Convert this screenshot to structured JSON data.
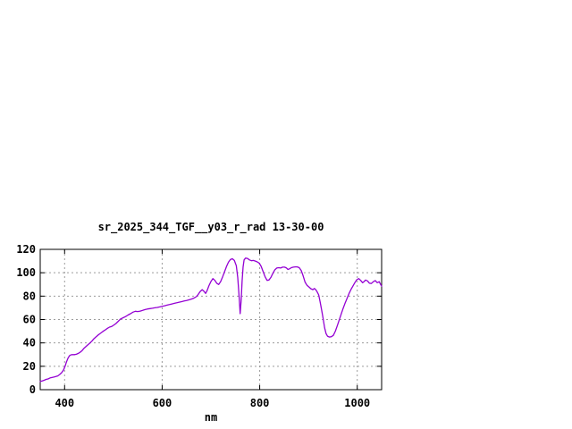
{
  "window": {
    "background": "#ffffff"
  },
  "chart_data": {
    "type": "line",
    "title": "sr_2025_344_TGF__y03_r_rad 13-30-00",
    "xlabel": "nm",
    "ylabel": "",
    "xlim": [
      350,
      1050
    ],
    "ylim": [
      0,
      120
    ],
    "x_ticks": [
      400,
      600,
      800,
      1000
    ],
    "y_ticks": [
      0,
      20,
      40,
      60,
      80,
      100,
      120
    ],
    "grid": true,
    "legend_position": "none",
    "border_color": "#000000",
    "grid_color": "#9c9c9c",
    "text_color": "#000000",
    "series": [
      {
        "color": "#9400d3",
        "points": [
          [
            350,
            7
          ],
          [
            354,
            7.5
          ],
          [
            358,
            8
          ],
          [
            362,
            8.8
          ],
          [
            366,
            9.2
          ],
          [
            370,
            10
          ],
          [
            374,
            10.4
          ],
          [
            378,
            10.8
          ],
          [
            382,
            11.2
          ],
          [
            386,
            11.8
          ],
          [
            390,
            13
          ],
          [
            394,
            14.5
          ],
          [
            398,
            17
          ],
          [
            401,
            20
          ],
          [
            404,
            24
          ],
          [
            407,
            27
          ],
          [
            410,
            29
          ],
          [
            413,
            29.8
          ],
          [
            416,
            30
          ],
          [
            420,
            30
          ],
          [
            424,
            30.3
          ],
          [
            428,
            31
          ],
          [
            432,
            32
          ],
          [
            436,
            33.5
          ],
          [
            440,
            35.5
          ],
          [
            444,
            37
          ],
          [
            448,
            38.5
          ],
          [
            452,
            40
          ],
          [
            456,
            41.5
          ],
          [
            460,
            43.5
          ],
          [
            464,
            45
          ],
          [
            468,
            46.5
          ],
          [
            472,
            47.8
          ],
          [
            476,
            49
          ],
          [
            480,
            50.2
          ],
          [
            484,
            51.3
          ],
          [
            488,
            52.5
          ],
          [
            492,
            53.5
          ],
          [
            496,
            54
          ],
          [
            500,
            55
          ],
          [
            505,
            56.5
          ],
          [
            510,
            58.5
          ],
          [
            515,
            60.5
          ],
          [
            520,
            61.5
          ],
          [
            525,
            62.5
          ],
          [
            530,
            63.8
          ],
          [
            535,
            65
          ],
          [
            540,
            66.3
          ],
          [
            545,
            67
          ],
          [
            550,
            66.8
          ],
          [
            555,
            67.2
          ],
          [
            560,
            67.8
          ],
          [
            565,
            68.5
          ],
          [
            570,
            69
          ],
          [
            575,
            69.3
          ],
          [
            580,
            69.6
          ],
          [
            585,
            70
          ],
          [
            590,
            70.3
          ],
          [
            595,
            70.8
          ],
          [
            600,
            71.3
          ],
          [
            605,
            71.8
          ],
          [
            610,
            72.3
          ],
          [
            615,
            72.8
          ],
          [
            620,
            73.3
          ],
          [
            625,
            73.8
          ],
          [
            630,
            74.3
          ],
          [
            635,
            74.8
          ],
          [
            640,
            75.3
          ],
          [
            645,
            75.8
          ],
          [
            650,
            76.3
          ],
          [
            655,
            76.8
          ],
          [
            660,
            77.5
          ],
          [
            665,
            78.3
          ],
          [
            670,
            79.5
          ],
          [
            674,
            81.5
          ],
          [
            678,
            84
          ],
          [
            682,
            85.5
          ],
          [
            686,
            84
          ],
          [
            689,
            82.3
          ],
          [
            692,
            84.5
          ],
          [
            696,
            89
          ],
          [
            700,
            92.5
          ],
          [
            704,
            95
          ],
          [
            708,
            93.5
          ],
          [
            712,
            91
          ],
          [
            716,
            90
          ],
          [
            720,
            92.5
          ],
          [
            724,
            96.5
          ],
          [
            728,
            101
          ],
          [
            732,
            105.5
          ],
          [
            736,
            109
          ],
          [
            740,
            111.3
          ],
          [
            744,
            112
          ],
          [
            748,
            110.5
          ],
          [
            752,
            106
          ],
          [
            755,
            96
          ],
          [
            758,
            78
          ],
          [
            760,
            65
          ],
          [
            762,
            76
          ],
          [
            764,
            93
          ],
          [
            766,
            105
          ],
          [
            768,
            111
          ],
          [
            771,
            112.5
          ],
          [
            775,
            112.3
          ],
          [
            779,
            111
          ],
          [
            783,
            110.3
          ],
          [
            787,
            110.5
          ],
          [
            791,
            110
          ],
          [
            795,
            109.3
          ],
          [
            799,
            108.2
          ],
          [
            803,
            105.5
          ],
          [
            807,
            101
          ],
          [
            811,
            96.5
          ],
          [
            815,
            93.5
          ],
          [
            819,
            93.8
          ],
          [
            823,
            96
          ],
          [
            827,
            99.5
          ],
          [
            831,
            102.5
          ],
          [
            835,
            104
          ],
          [
            839,
            104.3
          ],
          [
            843,
            104
          ],
          [
            847,
            104.8
          ],
          [
            851,
            104.8
          ],
          [
            855,
            104
          ],
          [
            858,
            102.8
          ],
          [
            861,
            103.3
          ],
          [
            865,
            104.3
          ],
          [
            869,
            104.8
          ],
          [
            873,
            105
          ],
          [
            877,
            105
          ],
          [
            881,
            104.3
          ],
          [
            885,
            102
          ],
          [
            889,
            97.5
          ],
          [
            893,
            92
          ],
          [
            897,
            89.3
          ],
          [
            901,
            87.8
          ],
          [
            905,
            86.3
          ],
          [
            909,
            85.5
          ],
          [
            912,
            86.5
          ],
          [
            915,
            85.5
          ],
          [
            918,
            83.5
          ],
          [
            921,
            81
          ],
          [
            924,
            75
          ],
          [
            927,
            68
          ],
          [
            930,
            61
          ],
          [
            933,
            53
          ],
          [
            936,
            48
          ],
          [
            939,
            45.8
          ],
          [
            943,
            45
          ],
          [
            947,
            45.3
          ],
          [
            951,
            46.5
          ],
          [
            955,
            50
          ],
          [
            959,
            54.5
          ],
          [
            963,
            59.5
          ],
          [
            967,
            64.5
          ],
          [
            971,
            69.5
          ],
          [
            975,
            74
          ],
          [
            979,
            78
          ],
          [
            983,
            82
          ],
          [
            987,
            85.5
          ],
          [
            991,
            88.5
          ],
          [
            995,
            91.5
          ],
          [
            999,
            94
          ],
          [
            1003,
            95
          ],
          [
            1007,
            93.5
          ],
          [
            1011,
            91.5
          ],
          [
            1014,
            92.5
          ],
          [
            1017,
            93.8
          ],
          [
            1021,
            93
          ],
          [
            1025,
            91
          ],
          [
            1029,
            90.8
          ],
          [
            1033,
            92.3
          ],
          [
            1037,
            93.3
          ],
          [
            1041,
            91.5
          ],
          [
            1045,
            92.3
          ],
          [
            1048,
            90
          ],
          [
            1050,
            88.5
          ]
        ]
      }
    ]
  }
}
